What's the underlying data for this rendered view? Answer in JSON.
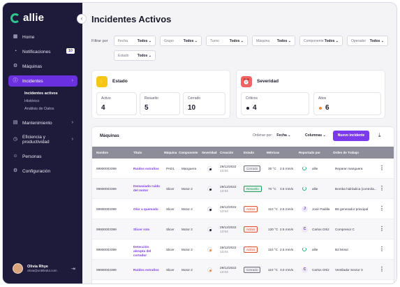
{
  "app": {
    "logo_text": "allie"
  },
  "sidebar": {
    "items": [
      {
        "label": "Home",
        "icon": "grid-icon"
      },
      {
        "label": "Notificaciones",
        "icon": "bell-icon",
        "badge": "10"
      },
      {
        "label": "Máquinas",
        "icon": "machine-icon"
      },
      {
        "label": "Incidentes",
        "icon": "alert-circle-icon",
        "active": true
      },
      {
        "label": "Mantenimiento",
        "icon": "calendar-icon"
      },
      {
        "label": "Eficiencia y productividad",
        "icon": "gauge-icon"
      },
      {
        "label": "Personas",
        "icon": "users-icon"
      },
      {
        "label": "Configuración",
        "icon": "settings-icon"
      }
    ],
    "incidentes_sub": [
      "Incidentes activos",
      "Histórico",
      "Análisis de Datos"
    ],
    "user": {
      "name": "Olivia Rhye",
      "email": "olivia@untitledui.com"
    }
  },
  "main": {
    "title": "Incidentes Activos",
    "filters": {
      "label": "Filtrar por",
      "items": [
        {
          "label": "Fecha",
          "value": "Todos"
        },
        {
          "label": "Grupo",
          "value": "Todos"
        },
        {
          "label": "Turno",
          "value": "Todos"
        },
        {
          "label": "Máquina",
          "value": "Todos"
        },
        {
          "label": "Componente",
          "value": "Todos"
        },
        {
          "label": "Operador",
          "value": "Todos"
        },
        {
          "label": "Estado",
          "value": "Todos"
        }
      ]
    },
    "estado": {
      "title": "Estado",
      "stats": [
        {
          "label": "Activo",
          "value": "4"
        },
        {
          "label": "Resuelto",
          "value": "5"
        },
        {
          "label": "Cerrado",
          "value": "10"
        }
      ]
    },
    "severidad": {
      "title": "Severidad",
      "stats": [
        {
          "label": "Críticos",
          "value": "4",
          "color": "#1f1f2e"
        },
        {
          "label": "Altos",
          "value": "6",
          "color": "#f08a3c"
        }
      ]
    },
    "table": {
      "title": "Máquinas",
      "order_label": "Ordenar por:",
      "order_value": "Fecha",
      "columns_label": "Columnas",
      "new_button": "Nuevo incidente",
      "headers": [
        "Nombre",
        "Título",
        "Máquina",
        "Componente",
        "Severidad",
        "Creación",
        "Estado",
        "Métricas",
        "Reportado por",
        "Orden de Trabajo"
      ],
      "rows": [
        {
          "nombre": "99900003399",
          "titulo": "Ruidos extraños",
          "maquina": "PAD1",
          "componente": "Manguera",
          "sev_color": "#1f1f2e",
          "fecha": "29/12/2022",
          "hora": "13:04",
          "estado": "Cerrado",
          "temp": "30 °C",
          "vel": "2.5 mm/s",
          "rep": "allie",
          "rep_initial": "",
          "orden": "Reparar manguera"
        },
        {
          "nombre": "99900003399",
          "titulo": "Demasiado ruido del motor",
          "maquina": "Slicer",
          "componente": "Motor 2",
          "sev_color": "#1f1f2e",
          "fecha": "29/12/2022",
          "hora": "13:04",
          "estado": "Resuelto",
          "temp": "70 °C",
          "vel": "3.5 mm/s",
          "rep": "allie",
          "rep_initial": "",
          "orden": "Bomba hidráulica (controla..."
        },
        {
          "nombre": "99900003399",
          "titulo": "Olor a quemado",
          "maquina": "Slicer",
          "componente": "Motor 2",
          "sev_color": "#1f1f2e",
          "fecha": "29/12/2022",
          "hora": "13:04",
          "estado": "Activo",
          "temp": "110 °C",
          "vel": "2.5 mm/s",
          "rep": "José Padilla",
          "rep_initial": "J",
          "orden": "B6 generador principal"
        },
        {
          "nombre": "99900003399",
          "titulo": "Slicer roto",
          "maquina": "Slicer",
          "componente": "Motor 2",
          "sev_color": "#1f1f2e",
          "fecha": "29/12/2022",
          "hora": "13:04",
          "estado": "Activo",
          "temp": "120 °C",
          "vel": "2.5 mm/s",
          "rep": "Carlos Ortiz",
          "rep_initial": "C",
          "orden": "Compresor C"
        },
        {
          "nombre": "99900003399",
          "titulo": "Detección abrupta del cortador",
          "maquina": "Slicer",
          "componente": "Motor 2",
          "sev_color": "#f08a3c",
          "fecha": "29/12/2022",
          "hora": "13:04",
          "estado": "Activo",
          "temp": "110 °C",
          "vel": "2.5 mm/s",
          "rep": "allie",
          "rep_initial": "",
          "orden": "B2 Motor"
        },
        {
          "nombre": "99900003399",
          "titulo": "Ruidos extraños",
          "maquina": "Slicer",
          "componente": "Motor 2",
          "sev_color": "#f08a3c",
          "fecha": "29/12/2022",
          "hora": "13:04",
          "estado": "Cerrado",
          "temp": "110 °C",
          "vel": "3.0 mm/s",
          "rep": "Carlos Ortiz",
          "rep_initial": "C",
          "orden": "Ventilador Sector 3"
        }
      ]
    }
  },
  "colors": {
    "sidebar_bg": "#1e1a3a",
    "accent": "#7c3aed",
    "estado_icon": "#f5c518",
    "severidad_icon": "#f26464",
    "status_cerrado": "#6b6b7a",
    "status_resuelto": "#1f9d55",
    "status_activo": "#e0522f"
  }
}
